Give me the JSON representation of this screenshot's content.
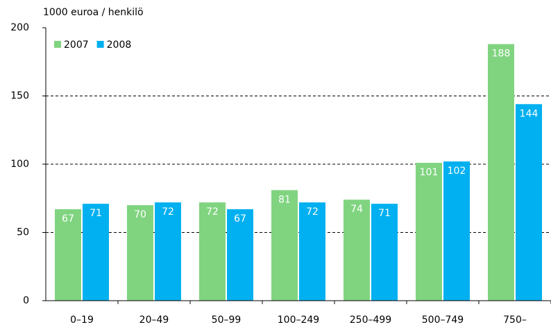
{
  "chart_data": {
    "type": "bar",
    "y_label": "1000 euroa / henkilö",
    "categories": [
      "0–19",
      "20–49",
      "50–99",
      "100–249",
      "250–499",
      "500–749",
      "750–"
    ],
    "series": [
      {
        "name": "2007",
        "color": "#80d480",
        "values": [
          67,
          70,
          72,
          81,
          74,
          101,
          188
        ]
      },
      {
        "name": "2008",
        "color": "#00b0f0",
        "values": [
          71,
          72,
          67,
          72,
          71,
          102,
          144
        ]
      }
    ],
    "ylim": [
      0,
      200
    ],
    "yticks": [
      0,
      50,
      100,
      150,
      200
    ],
    "grid": true,
    "legend": "upper left"
  }
}
